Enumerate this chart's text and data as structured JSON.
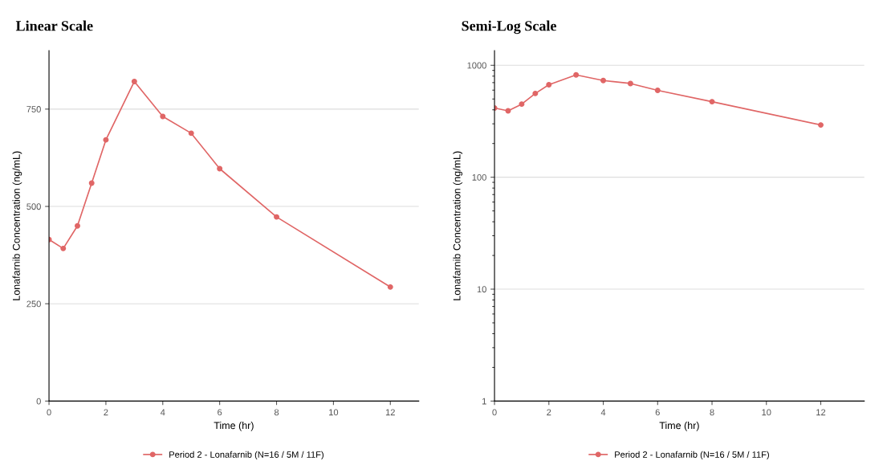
{
  "chart_data": [
    {
      "type": "line",
      "title": "Linear Scale",
      "xlabel": "Time (hr)",
      "ylabel": "Lonafarnib Concentration (ng/mL)",
      "x": [
        0,
        0.5,
        1,
        1.5,
        2,
        3,
        4,
        5,
        6,
        8,
        12
      ],
      "series": [
        {
          "name": "Period 2 - Lonafarnib (N=16 / 5M / 11F)",
          "color": "#e06666",
          "values": [
            415,
            392,
            450,
            560,
            671,
            821,
            731,
            688,
            597,
            473,
            293
          ]
        }
      ],
      "xlim": [
        0,
        13
      ],
      "xticks": [
        0,
        2,
        4,
        6,
        8,
        10,
        12
      ],
      "ylim": [
        0,
        900
      ],
      "yticks": [
        0,
        250,
        500,
        750
      ],
      "grid": "y",
      "legend": "bottom",
      "marker": "circle",
      "line_style": "solid"
    },
    {
      "type": "line",
      "title": "Semi-Log Scale",
      "xlabel": "Time (hr)",
      "ylabel": "Lonafarnib Concentration (ng/mL)",
      "x": [
        0,
        0.5,
        1,
        1.5,
        2,
        3,
        4,
        5,
        6,
        8,
        12
      ],
      "series": [
        {
          "name": "Period 2 - Lonafarnib (N=16 / 5M / 11F)",
          "color": "#e06666",
          "values": [
            415,
            392,
            450,
            560,
            671,
            821,
            731,
            688,
            597,
            473,
            293
          ]
        }
      ],
      "xlim": [
        0,
        13.6
      ],
      "xticks": [
        0,
        2,
        4,
        6,
        8,
        10,
        12
      ],
      "ylim": [
        1,
        1350
      ],
      "yticks": [
        1,
        10,
        100,
        1000
      ],
      "log": "y",
      "grid": "y",
      "legend": "bottom",
      "marker": "circle",
      "line_style": "solid"
    }
  ]
}
